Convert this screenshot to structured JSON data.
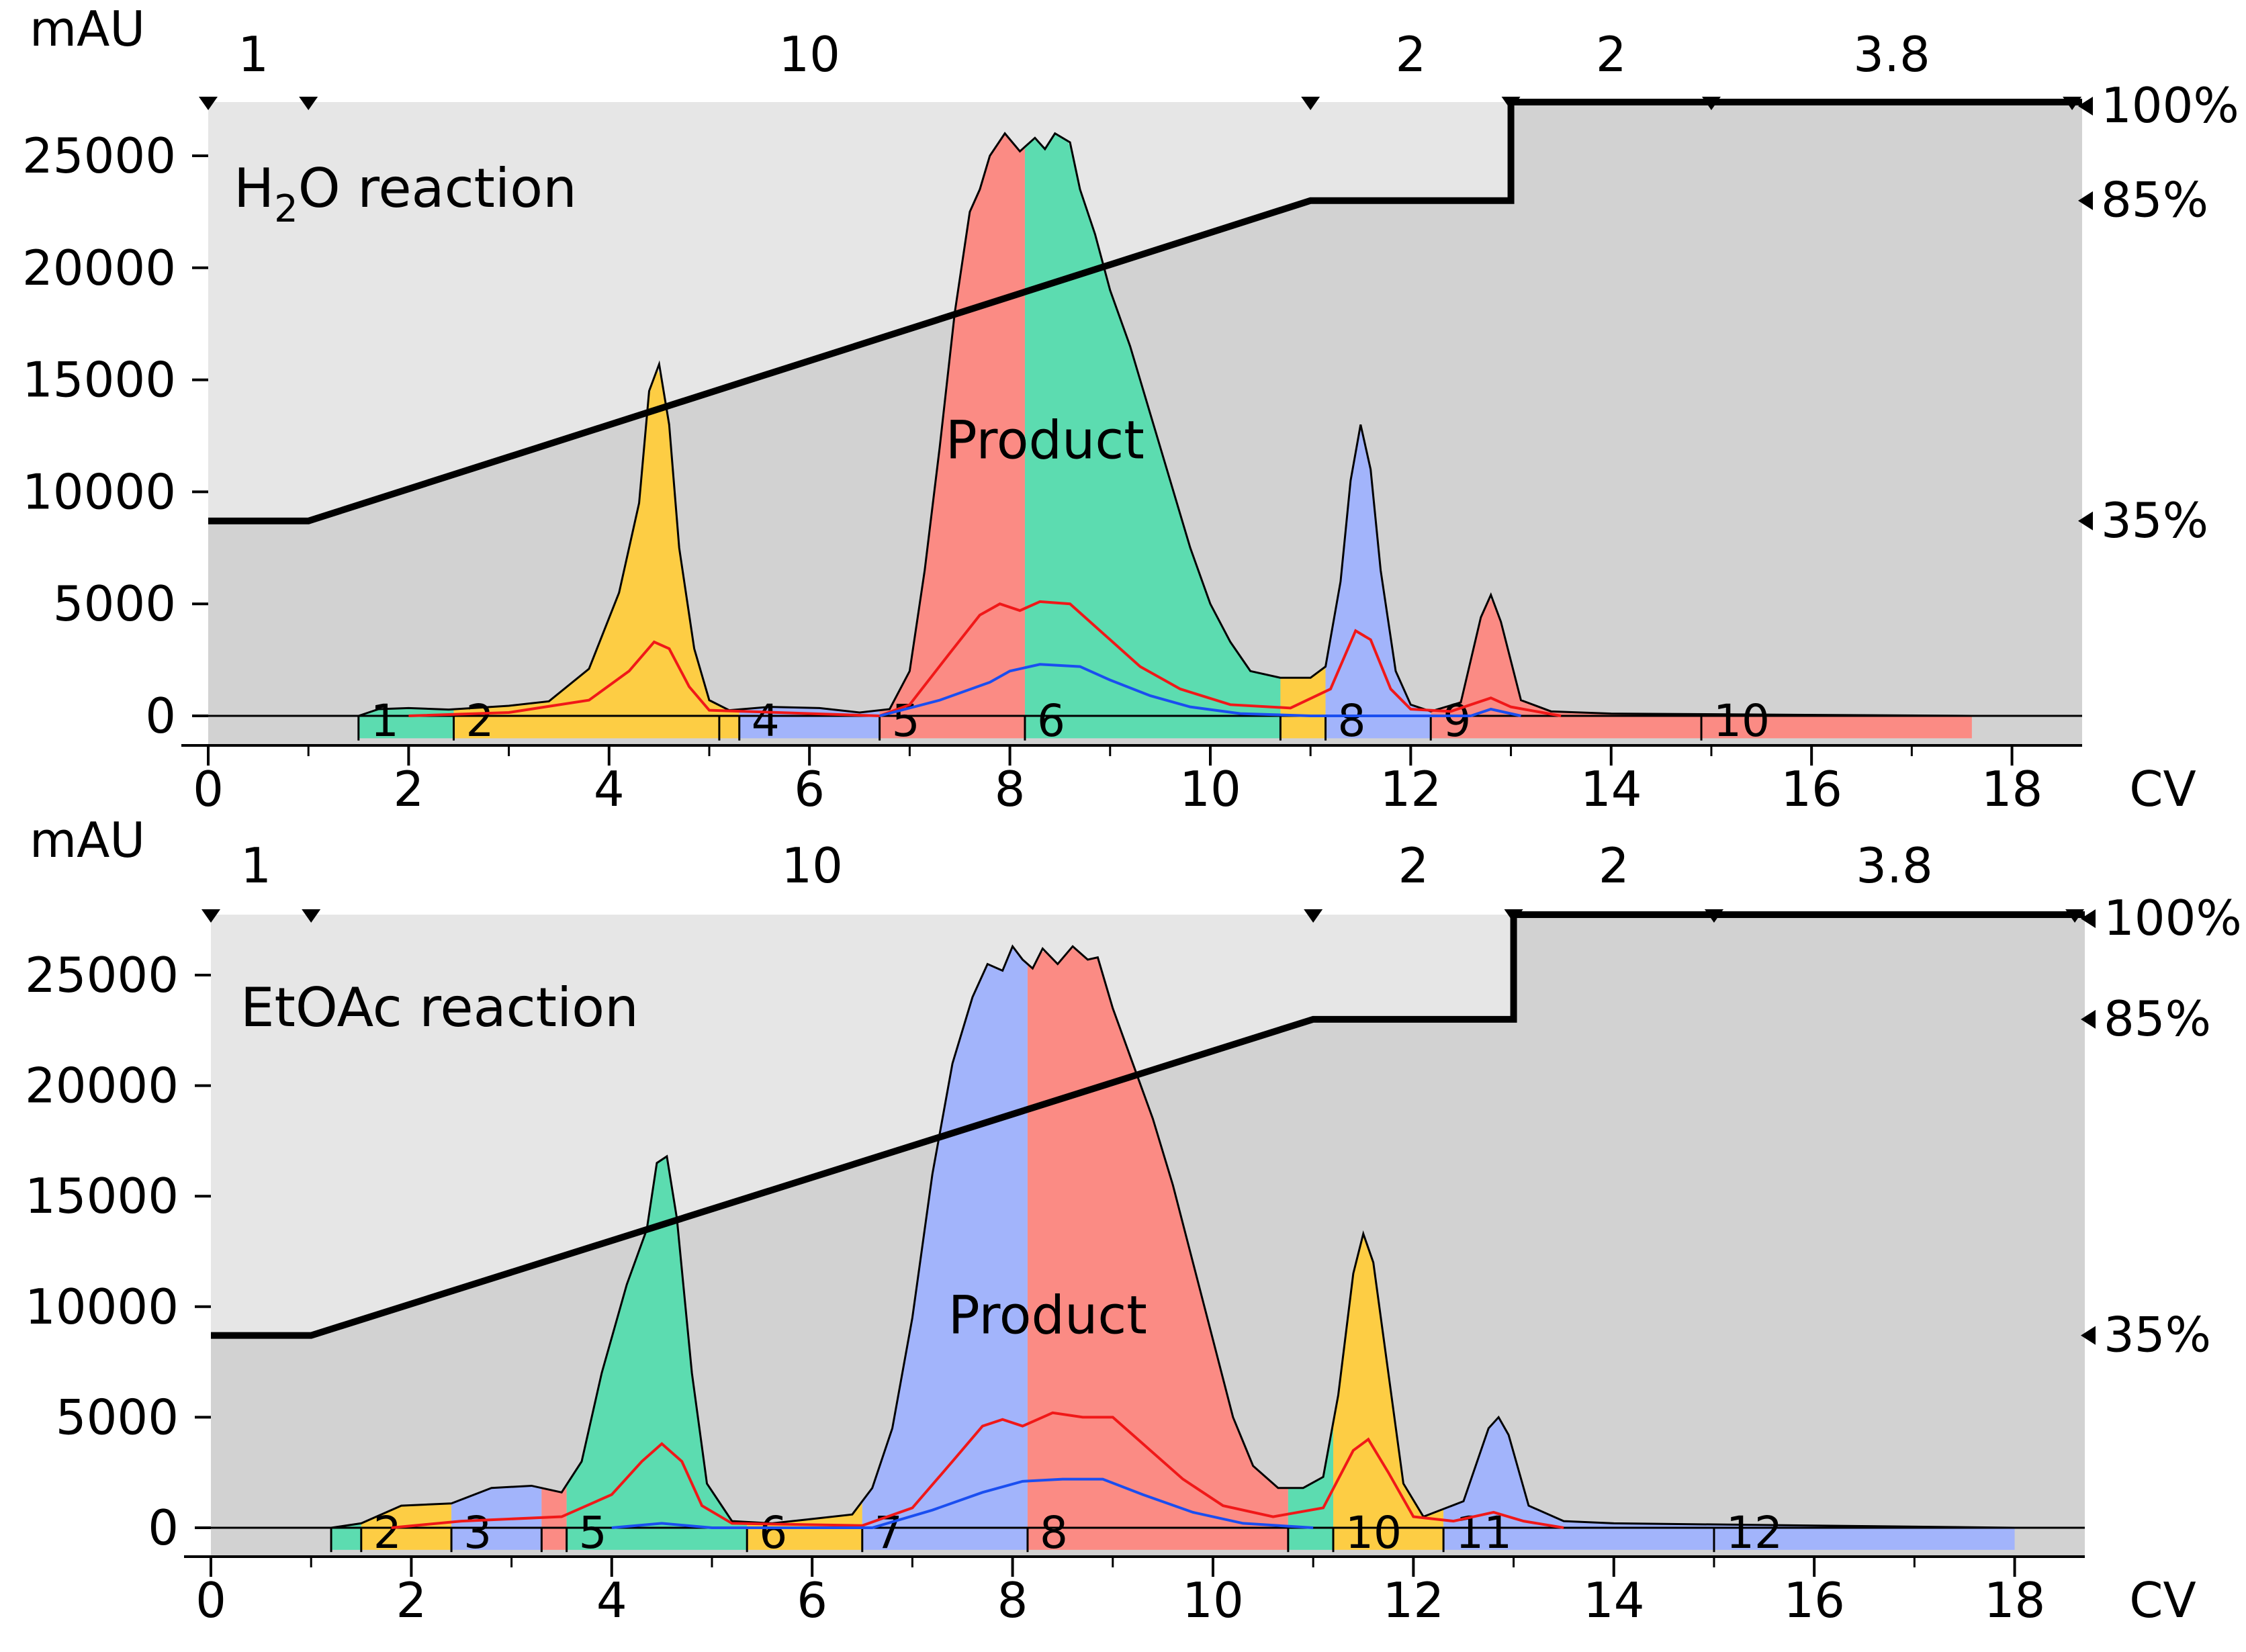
{
  "chart_data": [
    {
      "type": "area",
      "panel": "top",
      "title": "H2O reaction",
      "title_main": "H",
      "title_sub": "2",
      "title_rest": "O reaction",
      "peak_label": "Product",
      "ylabel": "mAU",
      "xlabel": "CV",
      "xlim": [
        0,
        18.7
      ],
      "ylim": [
        -1200,
        27300
      ],
      "xticks": [
        0,
        2,
        4,
        6,
        8,
        10,
        12,
        14,
        16,
        18
      ],
      "yticks": [
        0,
        5000,
        10000,
        15000,
        20000,
        25000
      ],
      "segment_markers": [
        0,
        1,
        11,
        13,
        15,
        18.6
      ],
      "segment_labels": [
        {
          "x": 0.45,
          "text": "1"
        },
        {
          "x": 6.0,
          "text": "10"
        },
        {
          "x": 12.0,
          "text": "2"
        },
        {
          "x": 14.0,
          "text": "2"
        },
        {
          "x": 16.8,
          "text": "3.8"
        }
      ],
      "gradient_pct": [
        [
          0,
          35
        ],
        [
          1,
          35
        ],
        [
          11,
          85
        ],
        [
          13,
          85
        ],
        [
          13,
          100
        ],
        [
          18.7,
          100
        ]
      ],
      "gradient_labels": [
        {
          "pct": 100,
          "text": "100%"
        },
        {
          "pct": 85,
          "text": "85%"
        },
        {
          "pct": 35,
          "text": "35%"
        }
      ],
      "absorbance": [
        [
          1.5,
          0
        ],
        [
          1.7,
          300
        ],
        [
          2,
          350
        ],
        [
          2.4,
          280
        ],
        [
          3,
          450
        ],
        [
          3.4,
          650
        ],
        [
          3.8,
          2100
        ],
        [
          4.1,
          5500
        ],
        [
          4.3,
          9500
        ],
        [
          4.4,
          14500
        ],
        [
          4.5,
          15700
        ],
        [
          4.6,
          13000
        ],
        [
          4.7,
          7500
        ],
        [
          4.85,
          3000
        ],
        [
          5.0,
          700
        ],
        [
          5.2,
          250
        ],
        [
          5.6,
          400
        ],
        [
          6.1,
          350
        ],
        [
          6.5,
          150
        ],
        [
          6.8,
          300
        ],
        [
          7.0,
          2000
        ],
        [
          7.15,
          6500
        ],
        [
          7.3,
          12000
        ],
        [
          7.45,
          18000
        ],
        [
          7.6,
          22500
        ],
        [
          7.7,
          23500
        ],
        [
          7.8,
          25000
        ],
        [
          7.95,
          26000
        ],
        [
          8.1,
          25200
        ],
        [
          8.25,
          25800
        ],
        [
          8.35,
          25300
        ],
        [
          8.45,
          26000
        ],
        [
          8.6,
          25600
        ],
        [
          8.7,
          23500
        ],
        [
          8.85,
          21500
        ],
        [
          9.0,
          19000
        ],
        [
          9.2,
          16500
        ],
        [
          9.4,
          13500
        ],
        [
          9.6,
          10500
        ],
        [
          9.8,
          7500
        ],
        [
          10.0,
          5000
        ],
        [
          10.2,
          3300
        ],
        [
          10.4,
          2000
        ],
        [
          10.7,
          1700
        ],
        [
          11.0,
          1700
        ],
        [
          11.15,
          2200
        ],
        [
          11.3,
          6000
        ],
        [
          11.4,
          10500
        ],
        [
          11.5,
          13000
        ],
        [
          11.6,
          11000
        ],
        [
          11.7,
          6500
        ],
        [
          11.85,
          2000
        ],
        [
          12.0,
          500
        ],
        [
          12.2,
          200
        ],
        [
          12.5,
          600
        ],
        [
          12.7,
          4400
        ],
        [
          12.8,
          5400
        ],
        [
          12.9,
          4200
        ],
        [
          13.1,
          700
        ],
        [
          13.4,
          200
        ],
        [
          14,
          100
        ],
        [
          17.6,
          0
        ]
      ],
      "red_trace": [
        [
          2,
          0
        ],
        [
          3,
          150
        ],
        [
          3.8,
          700
        ],
        [
          4.2,
          2000
        ],
        [
          4.45,
          3300
        ],
        [
          4.6,
          3000
        ],
        [
          4.8,
          1300
        ],
        [
          5.0,
          250
        ],
        [
          6.7,
          0
        ],
        [
          7.0,
          500
        ],
        [
          7.4,
          2800
        ],
        [
          7.7,
          4500
        ],
        [
          7.9,
          5000
        ],
        [
          8.1,
          4700
        ],
        [
          8.3,
          5100
        ],
        [
          8.6,
          5000
        ],
        [
          8.9,
          3800
        ],
        [
          9.3,
          2200
        ],
        [
          9.7,
          1200
        ],
        [
          10.2,
          500
        ],
        [
          10.8,
          350
        ],
        [
          11.2,
          1200
        ],
        [
          11.45,
          3800
        ],
        [
          11.6,
          3400
        ],
        [
          11.8,
          1200
        ],
        [
          12.0,
          300
        ],
        [
          12.4,
          200
        ],
        [
          12.8,
          800
        ],
        [
          13.0,
          400
        ],
        [
          13.5,
          0
        ]
      ],
      "blue_trace": [
        [
          6.7,
          0
        ],
        [
          7.3,
          700
        ],
        [
          7.8,
          1500
        ],
        [
          8.0,
          2000
        ],
        [
          8.3,
          2300
        ],
        [
          8.7,
          2200
        ],
        [
          9.0,
          1600
        ],
        [
          9.4,
          900
        ],
        [
          9.8,
          400
        ],
        [
          10.3,
          100
        ],
        [
          11.0,
          0
        ],
        [
          12.6,
          0
        ],
        [
          12.8,
          300
        ],
        [
          13.1,
          0
        ]
      ],
      "fractions": [
        {
          "label": "1",
          "x0": 1.5,
          "x1": 2.45,
          "color": "#5cdcb0"
        },
        {
          "label": "2",
          "x0": 2.45,
          "x1": 5.1,
          "color": "#fdcd44"
        },
        {
          "label": "",
          "x0": 5.1,
          "x1": 5.3,
          "color": "#fdcd44"
        },
        {
          "label": "4",
          "x0": 5.3,
          "x1": 6.7,
          "color": "#a2b4fb"
        },
        {
          "label": "5",
          "x0": 6.7,
          "x1": 8.15,
          "color": "#fb8b84"
        },
        {
          "label": "6",
          "x0": 8.15,
          "x1": 10.7,
          "color": "#5cdcb0"
        },
        {
          "label": "",
          "x0": 10.7,
          "x1": 11.15,
          "color": "#fdcd44"
        },
        {
          "label": "8",
          "x0": 11.15,
          "x1": 12.2,
          "color": "#a2b4fb"
        },
        {
          "label": "9",
          "x0": 12.2,
          "x1": 14.9,
          "color": "#fb8b84"
        },
        {
          "label": "10",
          "x0": 14.9,
          "x1": 17.6,
          "color": "#fb8b84"
        }
      ]
    },
    {
      "type": "area",
      "panel": "bottom",
      "title": "EtOAc reaction",
      "title_main": "EtOAc reaction",
      "title_sub": "",
      "title_rest": "",
      "peak_label": "Product",
      "ylabel": "mAU",
      "xlabel": "CV",
      "xlim": [
        0,
        18.7
      ],
      "ylim": [
        -1200,
        27300
      ],
      "xticks": [
        0,
        2,
        4,
        6,
        8,
        10,
        12,
        14,
        16,
        18
      ],
      "yticks": [
        0,
        5000,
        10000,
        15000,
        20000,
        25000
      ],
      "segment_markers": [
        0,
        1,
        11,
        13,
        15,
        18.6
      ],
      "segment_labels": [
        {
          "x": 0.45,
          "text": "1"
        },
        {
          "x": 6.0,
          "text": "10"
        },
        {
          "x": 12.0,
          "text": "2"
        },
        {
          "x": 14.0,
          "text": "2"
        },
        {
          "x": 16.8,
          "text": "3.8"
        }
      ],
      "gradient_pct": [
        [
          0,
          35
        ],
        [
          1,
          35
        ],
        [
          11,
          85
        ],
        [
          13,
          85
        ],
        [
          13,
          100
        ],
        [
          18.7,
          100
        ]
      ],
      "gradient_labels": [
        {
          "pct": 100,
          "text": "100%"
        },
        {
          "pct": 85,
          "text": "85%"
        },
        {
          "pct": 35,
          "text": "35%"
        }
      ],
      "absorbance": [
        [
          1.2,
          0
        ],
        [
          1.5,
          200
        ],
        [
          1.9,
          1000
        ],
        [
          2.4,
          1100
        ],
        [
          2.8,
          1800
        ],
        [
          3.2,
          1900
        ],
        [
          3.5,
          1600
        ],
        [
          3.7,
          3000
        ],
        [
          3.9,
          7000
        ],
        [
          4.15,
          11000
        ],
        [
          4.35,
          13500
        ],
        [
          4.45,
          16500
        ],
        [
          4.55,
          16800
        ],
        [
          4.65,
          14000
        ],
        [
          4.8,
          7000
        ],
        [
          4.95,
          2000
        ],
        [
          5.2,
          300
        ],
        [
          5.6,
          200
        ],
        [
          6.0,
          400
        ],
        [
          6.4,
          600
        ],
        [
          6.6,
          1800
        ],
        [
          6.8,
          4500
        ],
        [
          7.0,
          9500
        ],
        [
          7.2,
          16000
        ],
        [
          7.4,
          21000
        ],
        [
          7.6,
          24000
        ],
        [
          7.75,
          25500
        ],
        [
          7.9,
          25200
        ],
        [
          8.0,
          26300
        ],
        [
          8.1,
          25700
        ],
        [
          8.2,
          25300
        ],
        [
          8.3,
          26200
        ],
        [
          8.45,
          25500
        ],
        [
          8.6,
          26300
        ],
        [
          8.75,
          25700
        ],
        [
          8.85,
          25800
        ],
        [
          9.0,
          23500
        ],
        [
          9.2,
          21000
        ],
        [
          9.4,
          18500
        ],
        [
          9.6,
          15500
        ],
        [
          9.8,
          12000
        ],
        [
          10.0,
          8500
        ],
        [
          10.2,
          5000
        ],
        [
          10.4,
          2800
        ],
        [
          10.65,
          1800
        ],
        [
          10.9,
          1800
        ],
        [
          11.1,
          2300
        ],
        [
          11.25,
          6000
        ],
        [
          11.4,
          11500
        ],
        [
          11.5,
          13300
        ],
        [
          11.6,
          12000
        ],
        [
          11.75,
          7000
        ],
        [
          11.9,
          2000
        ],
        [
          12.1,
          500
        ],
        [
          12.5,
          1200
        ],
        [
          12.75,
          4500
        ],
        [
          12.85,
          5000
        ],
        [
          12.95,
          4200
        ],
        [
          13.15,
          1000
        ],
        [
          13.5,
          300
        ],
        [
          14,
          200
        ],
        [
          18,
          0
        ]
      ],
      "red_trace": [
        [
          1.8,
          0
        ],
        [
          2.5,
          300
        ],
        [
          3.5,
          500
        ],
        [
          4.0,
          1500
        ],
        [
          4.3,
          3000
        ],
        [
          4.5,
          3800
        ],
        [
          4.7,
          3000
        ],
        [
          4.9,
          1000
        ],
        [
          5.2,
          200
        ],
        [
          6.5,
          100
        ],
        [
          7.0,
          900
        ],
        [
          7.4,
          3000
        ],
        [
          7.7,
          4600
        ],
        [
          7.9,
          4900
        ],
        [
          8.1,
          4600
        ],
        [
          8.4,
          5200
        ],
        [
          8.7,
          5000
        ],
        [
          9.0,
          5000
        ],
        [
          9.3,
          3800
        ],
        [
          9.7,
          2200
        ],
        [
          10.1,
          1000
        ],
        [
          10.6,
          500
        ],
        [
          11.1,
          900
        ],
        [
          11.4,
          3500
        ],
        [
          11.55,
          4000
        ],
        [
          11.75,
          2500
        ],
        [
          12.0,
          500
        ],
        [
          12.4,
          300
        ],
        [
          12.8,
          700
        ],
        [
          13.1,
          300
        ],
        [
          13.5,
          0
        ]
      ],
      "blue_trace": [
        [
          4.0,
          0
        ],
        [
          4.5,
          200
        ],
        [
          5.0,
          0
        ],
        [
          6.6,
          0
        ],
        [
          7.2,
          800
        ],
        [
          7.7,
          1600
        ],
        [
          8.1,
          2100
        ],
        [
          8.5,
          2200
        ],
        [
          8.9,
          2200
        ],
        [
          9.3,
          1500
        ],
        [
          9.8,
          700
        ],
        [
          10.3,
          200
        ],
        [
          11.0,
          0
        ]
      ],
      "fractions": [
        {
          "label": "",
          "x0": 1.2,
          "x1": 1.5,
          "color": "#5cdcb0"
        },
        {
          "label": "2",
          "x0": 1.5,
          "x1": 2.4,
          "color": "#fdcd44"
        },
        {
          "label": "3",
          "x0": 2.4,
          "x1": 3.3,
          "color": "#a2b4fb"
        },
        {
          "label": "",
          "x0": 3.3,
          "x1": 3.55,
          "color": "#fb8b84"
        },
        {
          "label": "5",
          "x0": 3.55,
          "x1": 5.35,
          "color": "#5cdcb0"
        },
        {
          "label": "6",
          "x0": 5.35,
          "x1": 6.5,
          "color": "#fdcd44"
        },
        {
          "label": "7",
          "x0": 6.5,
          "x1": 8.15,
          "color": "#a2b4fb"
        },
        {
          "label": "8",
          "x0": 8.15,
          "x1": 10.75,
          "color": "#fb8b84"
        },
        {
          "label": "",
          "x0": 10.75,
          "x1": 11.2,
          "color": "#5cdcb0"
        },
        {
          "label": "10",
          "x0": 11.2,
          "x1": 12.3,
          "color": "#fdcd44"
        },
        {
          "label": "11",
          "x0": 12.3,
          "x1": 15.0,
          "color": "#a2b4fb"
        },
        {
          "label": "12",
          "x0": 15.0,
          "x1": 18.0,
          "color": "#a2b4fb"
        }
      ]
    }
  ],
  "colors": {
    "green": "#5cdcb0",
    "yellow": "#fdcd44",
    "blue": "#a2b4fb",
    "red": "#fb8b84",
    "bg_light": "#e6e6e6",
    "bg_dark": "#d2d2d2",
    "trace_red": "#f01818",
    "trace_blue": "#1a4ef0"
  }
}
